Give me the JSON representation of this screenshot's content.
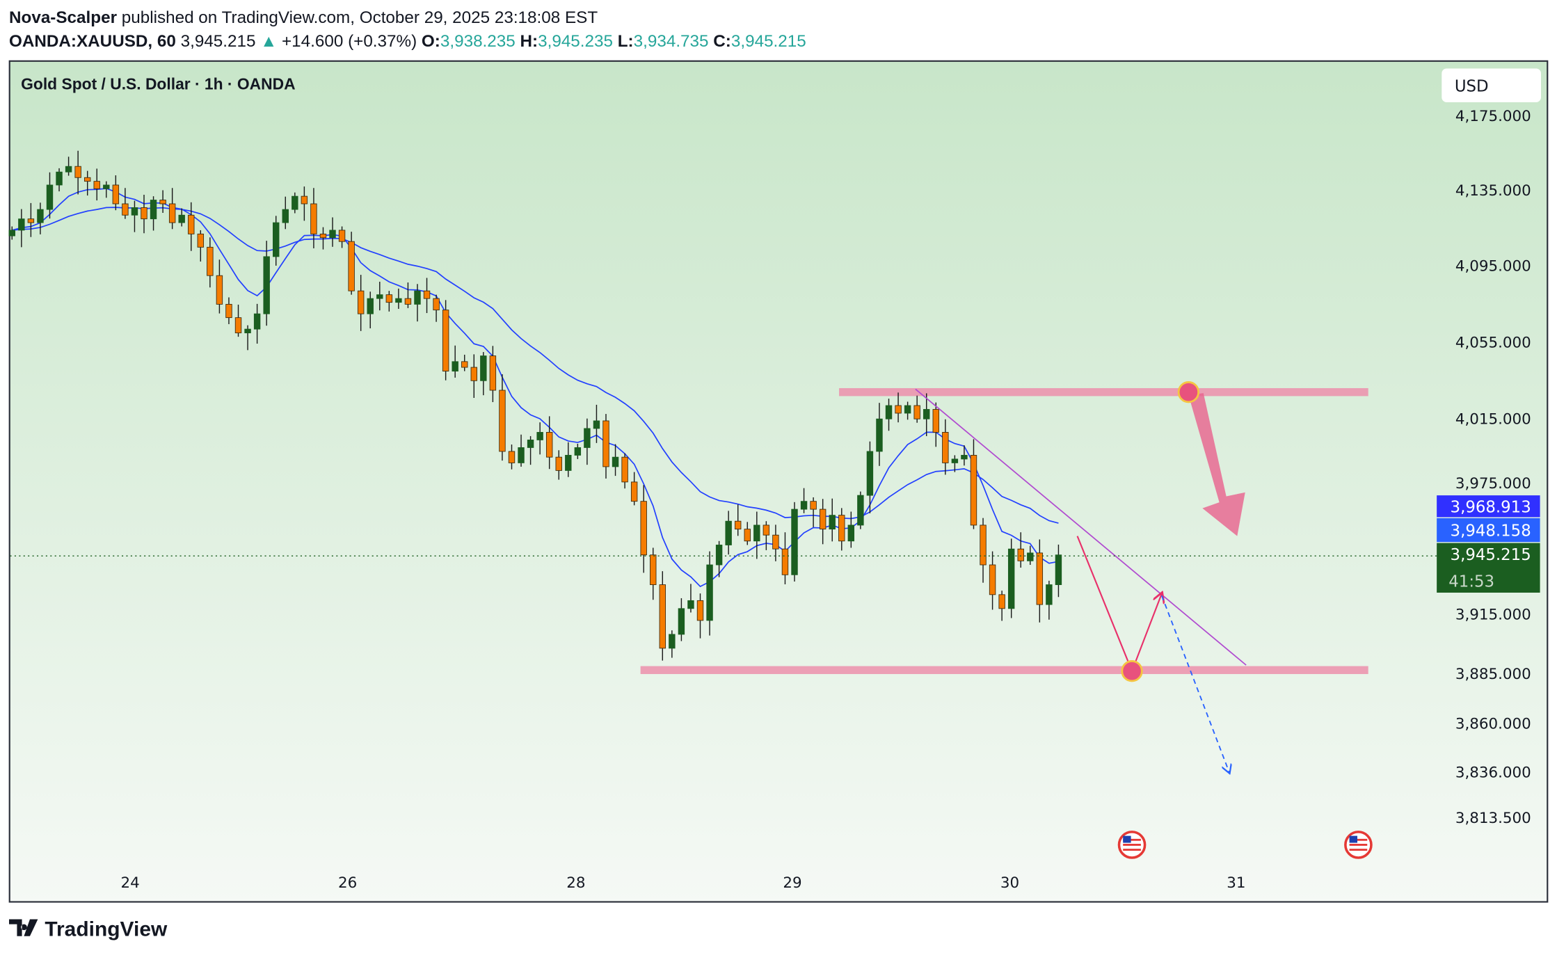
{
  "header": {
    "author": "Nova-Scalper",
    "published": " published on TradingView.com, October 29, 2025 23:18:08 EST",
    "symbol": "OANDA:XAUUSD, 60",
    "last": "3,945.215",
    "change": "+14.600 (+0.37%)",
    "o_label": "O:",
    "o": "3,938.235",
    "h_label": "H:",
    "h": "3,945.235",
    "l_label": "L:",
    "l": "3,934.735",
    "c_label": "C:",
    "c": "3,945.215"
  },
  "chart_title": "Gold Spot / U.S. Dollar · 1h · OANDA",
  "currency": "USD",
  "price_labels": {
    "ma_slow": "3,968.913",
    "ma_fast": "3,948.158",
    "last": "3,945.215",
    "countdown": "41:53"
  },
  "colors": {
    "up": "#1b5e20",
    "down": "#f57c00",
    "ma": "#2240ff",
    "zone": "#ec8fab",
    "trend": "#b04ad0",
    "path": "#e8306a",
    "accent": "#26a69a"
  },
  "footer": {
    "brand": "TradingView"
  },
  "chart_data": {
    "type": "candlestick",
    "title": "Gold Spot / U.S. Dollar · 1h · OANDA",
    "y_ticks": [
      4175,
      4135,
      4095,
      4055,
      4015,
      3975,
      3915,
      3885,
      3860,
      3836,
      3813.5
    ],
    "y_tick_labels": [
      "4,175.000",
      "4,135.000",
      "4,095.000",
      "4,055.000",
      "4,015.000",
      "3,975.000",
      "3,915.000",
      "3,885.000",
      "3,860.000",
      "3,836.000",
      "3,813.500"
    ],
    "x_ticks": [
      "24",
      "26",
      "28",
      "29",
      "30",
      "31"
    ],
    "closes": [
      4114,
      4120,
      4118,
      4125,
      4138,
      4145,
      4148,
      4142,
      4140,
      4136,
      4138,
      4128,
      4122,
      4126,
      4120,
      4130,
      4128,
      4118,
      4122,
      4112,
      4105,
      4090,
      4075,
      4068,
      4060,
      4062,
      4070,
      4100,
      4118,
      4125,
      4132,
      4128,
      4112,
      4110,
      4114,
      4108,
      4082,
      4070,
      4078,
      4080,
      4076,
      4078,
      4075,
      4082,
      4078,
      4072,
      4040,
      4045,
      4042,
      4035,
      4048,
      4030,
      3998,
      3992,
      4000,
      4004,
      4008,
      3995,
      3988,
      3996,
      4000,
      4010,
      4014,
      3990,
      3995,
      3982,
      3972,
      3945,
      3930,
      3898,
      3905,
      3918,
      3922,
      3912,
      3940,
      3950,
      3962,
      3958,
      3952,
      3960,
      3955,
      3948,
      3935,
      3968,
      3972,
      3968,
      3958,
      3965,
      3952,
      3960,
      3975,
      3998,
      4015,
      4022,
      4018,
      4022,
      4015,
      4020,
      4008,
      3992,
      3994,
      3996,
      3960,
      3940,
      3925,
      3918,
      3948,
      3942,
      3946,
      3920,
      3930,
      3945
    ],
    "moving_averages": [
      {
        "name": "fast MA",
        "last": 3948.158
      },
      {
        "name": "slow MA",
        "last": 3968.913
      }
    ],
    "annotations": {
      "resistance_zone": 4025,
      "support_zone": 3888,
      "projected_target": 3836
    }
  }
}
